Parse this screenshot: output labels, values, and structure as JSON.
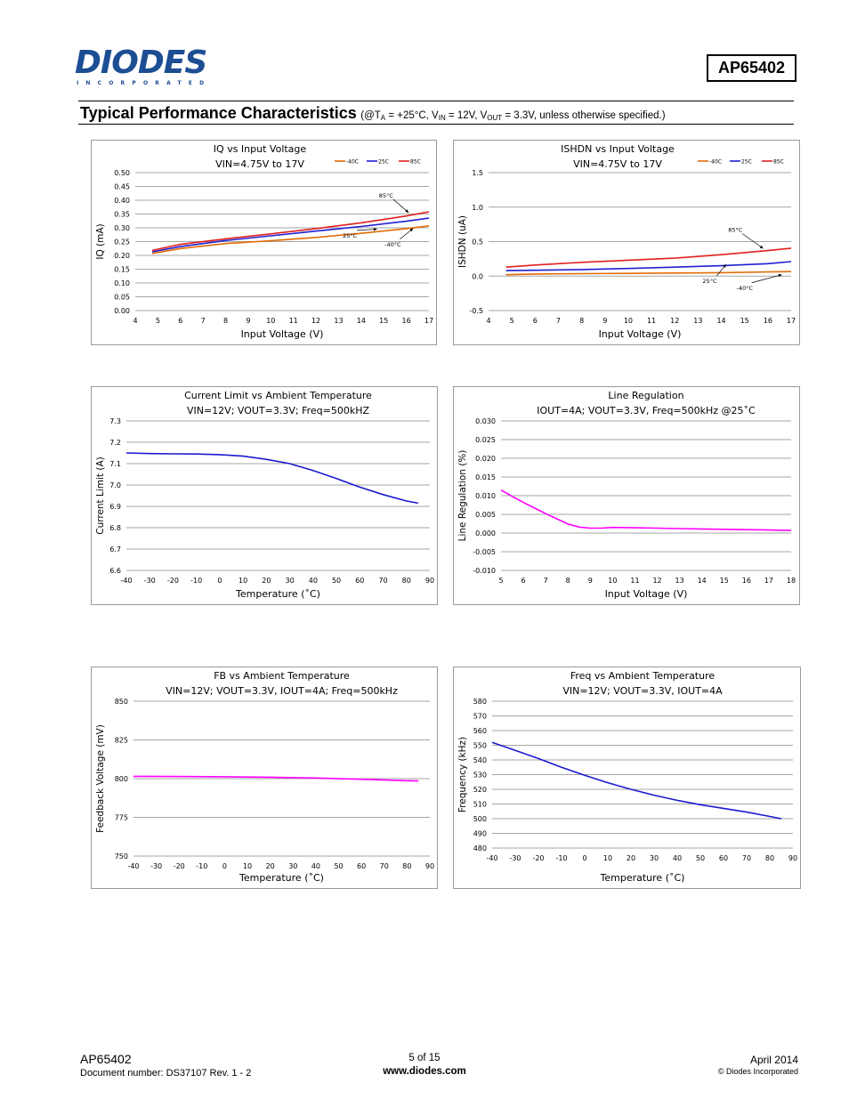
{
  "header": {
    "logo_word": "DIODES",
    "logo_sub": "INCORPORATED",
    "part_number": "AP65402"
  },
  "section": {
    "title": "Typical Performance Characteristics",
    "conditions_open": "(@T",
    "conditions_ta_sub": "A",
    "conditions_mid1": " = +25°C, V",
    "conditions_vin_sub": "IN",
    "conditions_mid2": " = 12V, V",
    "conditions_vout_sub": "OUT",
    "conditions_end": " = 3.3V, unless otherwise specified.)"
  },
  "colors": {
    "minus40": "#e36c09",
    "plus25": "#1f1fd2",
    "plus85": "#e02020",
    "magenta": "#ff00ff",
    "navy": "#1a1ad0",
    "grid": "#a6a6a6",
    "frame": "#9a9a9a"
  },
  "chart_data": [
    {
      "type": "line",
      "title": "IQ vs Input Voltage",
      "subtitle": "VIN=4.75V to 17V",
      "xlabel": "Input Voltage (V)",
      "ylabel": "IQ (mA)",
      "xlim": [
        4,
        17
      ],
      "ylim": [
        0,
        0.5
      ],
      "xticks": [
        4,
        5,
        6,
        7,
        8,
        9,
        10,
        11,
        12,
        13,
        14,
        15,
        16,
        17
      ],
      "yticks": [
        0,
        0.05,
        0.1,
        0.15,
        0.2,
        0.25,
        0.3,
        0.35,
        0.4,
        0.45,
        0.5
      ],
      "ytick_labels": [
        "0.00",
        "0.05",
        "0.10",
        "0.15",
        "0.20",
        "0.25",
        "0.30",
        "0.35",
        "0.40",
        "0.45",
        "0.50"
      ],
      "grid": true,
      "legend": "top-right",
      "series": [
        {
          "name": "-40C",
          "color_key": "minus40",
          "x": [
            4.75,
            6,
            8,
            10,
            12,
            14,
            16,
            17
          ],
          "y": [
            0.207,
            0.225,
            0.243,
            0.253,
            0.265,
            0.28,
            0.297,
            0.307
          ]
        },
        {
          "name": "25C",
          "color_key": "plus25",
          "x": [
            4.75,
            6,
            8,
            10,
            12,
            14,
            16,
            17
          ],
          "y": [
            0.213,
            0.232,
            0.254,
            0.271,
            0.288,
            0.305,
            0.324,
            0.335
          ]
        },
        {
          "name": "85C",
          "color_key": "plus85",
          "x": [
            4.75,
            6,
            8,
            10,
            12,
            14,
            16,
            17
          ],
          "y": [
            0.218,
            0.24,
            0.26,
            0.278,
            0.297,
            0.318,
            0.343,
            0.358
          ]
        }
      ],
      "annotations": [
        {
          "text": "85°C",
          "x": 15.1,
          "y": 0.41,
          "ax": 16.1,
          "ay": 0.355
        },
        {
          "text": "25°C",
          "x": 13.5,
          "y": 0.265,
          "ax": 14.7,
          "ay": 0.295
        },
        {
          "text": "-40°C",
          "x": 15.4,
          "y": 0.233,
          "ax": 16.3,
          "ay": 0.298
        }
      ]
    },
    {
      "type": "line",
      "title": "ISHDN vs Input Voltage",
      "subtitle": "VIN=4.75V to 17V",
      "xlabel": "Input Voltage (V)",
      "ylabel": "ISHDN (uA)",
      "xlim": [
        4,
        17
      ],
      "ylim": [
        -0.5,
        1.5
      ],
      "xticks": [
        4,
        5,
        6,
        7,
        8,
        9,
        10,
        11,
        12,
        13,
        14,
        15,
        16,
        17
      ],
      "yticks": [
        -0.5,
        0,
        0.5,
        1,
        1.5
      ],
      "ytick_labels": [
        "-0.5",
        "0.0",
        "0.5",
        "1.0",
        "1.5"
      ],
      "grid": true,
      "legend": "top-right",
      "series": [
        {
          "name": "-40C",
          "color_key": "minus40",
          "x": [
            4.75,
            6,
            8,
            10,
            12,
            14,
            16,
            17
          ],
          "y": [
            0.02,
            0.03,
            0.035,
            0.04,
            0.045,
            0.05,
            0.06,
            0.065
          ]
        },
        {
          "name": "25C",
          "color_key": "plus25",
          "x": [
            4.75,
            6,
            8,
            10,
            12,
            14,
            16,
            17
          ],
          "y": [
            0.08,
            0.085,
            0.095,
            0.11,
            0.13,
            0.15,
            0.18,
            0.21
          ]
        },
        {
          "name": "85C",
          "color_key": "plus85",
          "x": [
            4.75,
            6,
            8,
            10,
            12,
            14,
            16,
            17
          ],
          "y": [
            0.13,
            0.16,
            0.2,
            0.23,
            0.26,
            0.31,
            0.37,
            0.405
          ]
        }
      ],
      "annotations": [
        {
          "text": "85°C",
          "x": 14.6,
          "y": 0.64,
          "ax": 15.8,
          "ay": 0.4
        },
        {
          "text": "25°C",
          "x": 13.5,
          "y": -0.1,
          "ax": 14.2,
          "ay": 0.17
        },
        {
          "text": "-40°C",
          "x": 15.0,
          "y": -0.2,
          "ax": 16.6,
          "ay": 0.02
        }
      ]
    },
    {
      "type": "line",
      "title": "Current Limit vs Ambient Temperature",
      "subtitle": "VIN=12V; VOUT=3.3V; Freq=500kHZ",
      "xlabel": "Temperature (˚C)",
      "ylabel": "Current Limit (A)",
      "xlim": [
        -40,
        90
      ],
      "ylim": [
        6.6,
        7.3
      ],
      "xticks": [
        -40,
        -30,
        -20,
        -10,
        0,
        10,
        20,
        30,
        40,
        50,
        60,
        70,
        80,
        90
      ],
      "yticks": [
        6.6,
        6.7,
        6.8,
        6.9,
        7.0,
        7.1,
        7.2,
        7.3
      ],
      "ytick_labels": [
        "6.6",
        "6.7",
        "6.8",
        "6.9",
        "7.0",
        "7.1",
        "7.2",
        "7.3"
      ],
      "grid": true,
      "series": [
        {
          "color_key": "navy",
          "x": [
            -40,
            -30,
            -20,
            -10,
            0,
            10,
            20,
            30,
            40,
            50,
            60,
            70,
            80,
            85
          ],
          "y": [
            7.15,
            7.147,
            7.146,
            7.145,
            7.142,
            7.135,
            7.12,
            7.1,
            7.068,
            7.03,
            6.99,
            6.955,
            6.925,
            6.915
          ]
        }
      ]
    },
    {
      "type": "line",
      "title": "Line Regulation",
      "subtitle": "IOUT=4A; VOUT=3.3V, Freq=500kHz @25˚C",
      "xlabel": "Input Voltage (V)",
      "ylabel": "Line Regulation (%)",
      "xlim": [
        5,
        18
      ],
      "ylim": [
        -0.01,
        0.03
      ],
      "xticks": [
        5,
        6,
        7,
        8,
        9,
        10,
        11,
        12,
        13,
        14,
        15,
        16,
        17,
        18
      ],
      "yticks": [
        -0.01,
        -0.005,
        0,
        0.005,
        0.01,
        0.015,
        0.02,
        0.025,
        0.03
      ],
      "ytick_labels": [
        "-0.010",
        "-0.005",
        "0.000",
        "0.005",
        "0.010",
        "0.015",
        "0.020",
        "0.025",
        "0.030"
      ],
      "grid": true,
      "series": [
        {
          "color_key": "magenta",
          "x": [
            5,
            5.5,
            6,
            6.5,
            7,
            7.5,
            8,
            8.5,
            9,
            9.5,
            10,
            11,
            12,
            13,
            14,
            15,
            16,
            17,
            18
          ],
          "y": [
            0.0115,
            0.0098,
            0.0082,
            0.0067,
            0.0052,
            0.0038,
            0.0024,
            0.0016,
            0.0013,
            0.0013,
            0.0015,
            0.0014,
            0.0013,
            0.0012,
            0.0011,
            0.001,
            0.0009,
            0.0008,
            0.0007
          ]
        }
      ]
    },
    {
      "type": "line",
      "title": "FB vs Ambient Temperature",
      "subtitle": "VIN=12V; VOUT=3.3V, IOUT=4A; Freq=500kHz",
      "xlabel": "Temperature (˚C)",
      "ylabel": "Feedback Voltage (mV)",
      "xlim": [
        -40,
        90
      ],
      "ylim": [
        750,
        850
      ],
      "xticks": [
        -40,
        -30,
        -20,
        -10,
        0,
        10,
        20,
        30,
        40,
        50,
        60,
        70,
        80,
        90
      ],
      "yticks": [
        750,
        775,
        800,
        825,
        850
      ],
      "ytick_labels": [
        "750",
        "775",
        "800",
        "825",
        "850"
      ],
      "grid": true,
      "series": [
        {
          "color_key": "magenta",
          "x": [
            -40,
            -20,
            0,
            20,
            40,
            60,
            80,
            85
          ],
          "y": [
            801.5,
            801.4,
            801.2,
            800.9,
            800.4,
            799.6,
            798.7,
            798.5
          ]
        }
      ]
    },
    {
      "type": "line",
      "title": "Freq vs Ambient Temperature",
      "subtitle": "VIN=12V; VOUT=3.3V, IOUT=4A",
      "xlabel": "Temperature (˚C)",
      "ylabel": "Frequency (kHz)",
      "xlim": [
        -40,
        90
      ],
      "ylim": [
        480,
        580
      ],
      "xticks": [
        -40,
        -30,
        -20,
        -10,
        0,
        10,
        20,
        30,
        40,
        50,
        60,
        70,
        80,
        90
      ],
      "yticks": [
        480,
        490,
        500,
        510,
        520,
        530,
        540,
        550,
        560,
        570,
        580
      ],
      "ytick_labels": [
        "480",
        "490",
        "500",
        "510",
        "520",
        "530",
        "540",
        "550",
        "560",
        "570",
        "580"
      ],
      "grid": true,
      "series": [
        {
          "color_key": "navy",
          "x": [
            -40,
            -30,
            -20,
            -10,
            0,
            10,
            20,
            30,
            40,
            50,
            60,
            70,
            80,
            85
          ],
          "y": [
            552,
            546.5,
            541,
            535,
            529.5,
            524.5,
            520,
            516,
            512.5,
            509.5,
            507,
            504.5,
            501.5,
            500
          ]
        }
      ]
    }
  ],
  "footer": {
    "left_part": "AP65402",
    "left_doc": "Document number: DS37107 Rev. 1 - 2",
    "page": "5 of 15",
    "website": "www.diodes.com",
    "date": "April 2014",
    "copyright": "© Diodes Incorporated"
  }
}
